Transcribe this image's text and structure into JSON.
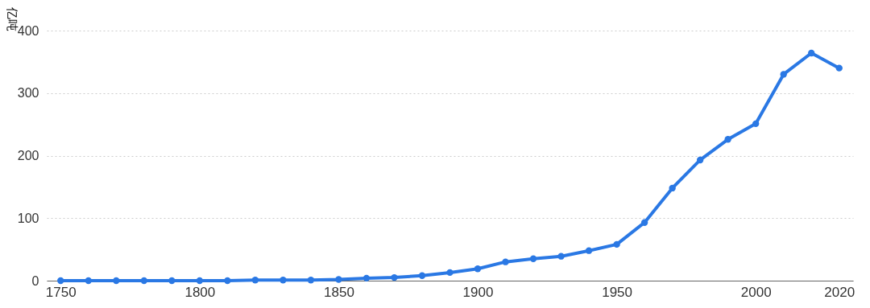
{
  "chart_data": {
    "type": "line",
    "ylabel": "亿吨",
    "categories": [
      "1750",
      null,
      null,
      null,
      null,
      "1800",
      null,
      null,
      null,
      null,
      "1850",
      null,
      null,
      null,
      null,
      "1900",
      null,
      null,
      null,
      null,
      "1950",
      null,
      null,
      null,
      null,
      "2000",
      null,
      null,
      "2020"
    ],
    "series": [
      {
        "color": "#2a78e4",
        "values": [
          0,
          0,
          0,
          0,
          0,
          0,
          0,
          1,
          1,
          1,
          2,
          4,
          5,
          8,
          13,
          19,
          30,
          35,
          39,
          48,
          58,
          93,
          148,
          193,
          226,
          251,
          330,
          364,
          340
        ]
      }
    ],
    "ylim": [
      0,
      400
    ],
    "yticks": [
      0,
      100,
      200,
      300,
      400
    ],
    "grid": "y",
    "marker": "circle",
    "line_style": "solid"
  }
}
